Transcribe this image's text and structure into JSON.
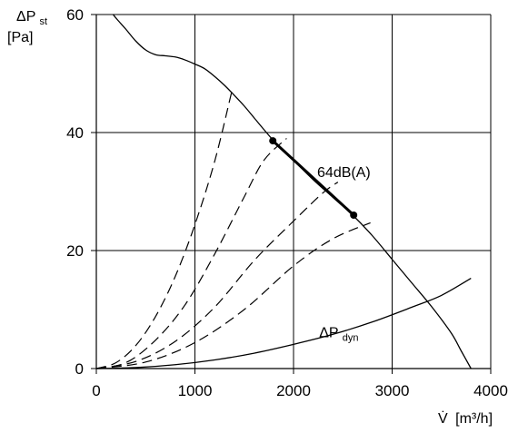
{
  "chart_data": {
    "type": "line",
    "xlim": [
      0,
      4000
    ],
    "ylim": [
      0,
      60
    ],
    "x_ticks": [
      0,
      1000,
      2000,
      3000,
      4000
    ],
    "y_ticks": [
      0,
      20,
      40,
      60
    ],
    "x_tick_labels": [
      "0",
      "1000",
      "2000",
      "3000",
      "4000"
    ],
    "y_tick_labels": [
      "0",
      "20",
      "40",
      "60"
    ],
    "grid": true,
    "xlabel": {
      "symbol": "V̇",
      "unit": "[m³/h]"
    },
    "ylabel": {
      "line1_main": "ΔP",
      "line1_sub": "st",
      "line2": "[Pa]"
    },
    "series": [
      {
        "style": "solid",
        "points": [
          [
            170,
            60
          ],
          [
            220,
            59
          ],
          [
            300,
            57.5
          ],
          [
            400,
            55.5
          ],
          [
            500,
            54
          ],
          [
            600,
            53.2
          ],
          [
            700,
            53
          ],
          [
            800,
            52.8
          ],
          [
            900,
            52.3
          ],
          [
            1000,
            51.6
          ],
          [
            1100,
            50.8
          ],
          [
            1200,
            49.5
          ],
          [
            1300,
            48
          ],
          [
            1400,
            46.3
          ],
          [
            1500,
            44.5
          ],
          [
            1600,
            42.5
          ],
          [
            1700,
            40.5
          ],
          [
            1800,
            38.6
          ],
          [
            2000,
            35.3
          ],
          [
            2200,
            32
          ],
          [
            2400,
            29
          ],
          [
            2600,
            26
          ],
          [
            2800,
            22.5
          ],
          [
            3000,
            18.5
          ],
          [
            3200,
            14.5
          ],
          [
            3400,
            10.5
          ],
          [
            3600,
            6
          ],
          [
            3700,
            3
          ],
          [
            3800,
            0
          ]
        ]
      },
      {
        "style": "solid",
        "points": [
          [
            0,
            0
          ],
          [
            400,
            0.16
          ],
          [
            800,
            0.65
          ],
          [
            1200,
            1.46
          ],
          [
            1600,
            2.6
          ],
          [
            2000,
            4.1
          ],
          [
            2400,
            5.8
          ],
          [
            2800,
            7.9
          ],
          [
            3200,
            10.4
          ],
          [
            3500,
            12.4
          ],
          [
            3800,
            15.3
          ]
        ]
      },
      {
        "style": "dashed",
        "points": [
          [
            0,
            0
          ],
          [
            200,
            1
          ],
          [
            400,
            3.9
          ],
          [
            600,
            8.8
          ],
          [
            800,
            15.6
          ],
          [
            1000,
            24.4
          ],
          [
            1200,
            35.1
          ],
          [
            1370,
            46.7
          ]
        ]
      },
      {
        "style": "dashed",
        "points": [
          [
            0,
            0
          ],
          [
            300,
            1
          ],
          [
            600,
            4.8
          ],
          [
            900,
            10.8
          ],
          [
            1200,
            19.4
          ],
          [
            1500,
            29.1
          ],
          [
            1700,
            35.3
          ],
          [
            1930,
            39
          ]
        ]
      },
      {
        "style": "dashed",
        "points": [
          [
            0,
            0
          ],
          [
            400,
            1.2
          ],
          [
            800,
            4.6
          ],
          [
            1200,
            10.4
          ],
          [
            1600,
            18.3
          ],
          [
            2000,
            25
          ],
          [
            2300,
            29.8
          ],
          [
            2450,
            31.6
          ]
        ]
      },
      {
        "style": "dashed",
        "points": [
          [
            0,
            0
          ],
          [
            500,
            1.1
          ],
          [
            1000,
            4.4
          ],
          [
            1500,
            10
          ],
          [
            2000,
            17.4
          ],
          [
            2400,
            22
          ],
          [
            2780,
            24.7
          ]
        ]
      },
      {
        "style": "bold",
        "points": [
          [
            1790,
            38.6
          ],
          [
            2610,
            26
          ]
        ]
      }
    ],
    "markers": [
      [
        1790,
        38.6
      ],
      [
        2610,
        26
      ]
    ],
    "annotations": [
      {
        "text": "64dB(A)",
        "x": 2240,
        "y": 32.5
      },
      {
        "main": "ΔP",
        "sub": "dyn",
        "x": 2260,
        "y": 5.3
      }
    ]
  }
}
